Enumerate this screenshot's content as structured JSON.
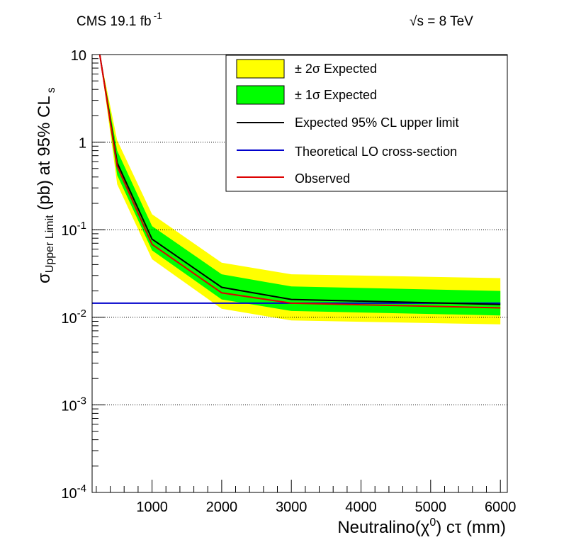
{
  "header": {
    "left_main": "CMS 19.1 fb",
    "left_sup": "-1",
    "right_sqrt": "√",
    "right_text": "s = 8 TeV"
  },
  "legend": {
    "two_sigma": "± 2σ Expected",
    "one_sigma": "± 1σ Expected",
    "expected": "Expected 95% CL upper limit",
    "theory": "Theoretical LO cross-section",
    "observed": "Observed"
  },
  "colors": {
    "two_sigma": "#ffff00",
    "one_sigma": "#00ff00",
    "expected": "#000000",
    "theory": "#0000cc",
    "observed": "#dd0000",
    "grid": "#000000"
  },
  "chart_data": {
    "type": "line",
    "yscale": "log",
    "xlim": [
      140,
      6100
    ],
    "ylim": [
      0.0001,
      10
    ],
    "xticks": [
      {
        "value": 1000,
        "label": "1000"
      },
      {
        "value": 2000,
        "label": "2000"
      },
      {
        "value": 3000,
        "label": "3000"
      },
      {
        "value": 4000,
        "label": "4000"
      },
      {
        "value": 5000,
        "label": "5000"
      },
      {
        "value": 6000,
        "label": "6000"
      }
    ],
    "yticks": [
      {
        "value": 10,
        "base": "10",
        "exp": ""
      },
      {
        "value": 1,
        "base": "1",
        "exp": ""
      },
      {
        "value": 0.1,
        "base": "10",
        "exp": "-1"
      },
      {
        "value": 0.01,
        "base": "10",
        "exp": "-2"
      },
      {
        "value": 0.001,
        "base": "10",
        "exp": "-3"
      },
      {
        "value": 0.0001,
        "base": "10",
        "exp": "-4"
      }
    ],
    "grid": "horizontal dotted at decades",
    "legend_position": "top-right",
    "xlabel": {
      "pre": "Neutralino(",
      "chi": "χ",
      "sup": "0",
      "post": ") cτ (mm)"
    },
    "ylabel": {
      "sigma": "σ",
      "sub": "Upper Limit",
      "mid": " (pb) at 95% CL",
      "sub2": "s"
    },
    "x": [
      250,
      500,
      1000,
      2000,
      3000,
      6000
    ],
    "series": [
      {
        "name": "Expected 95% CL upper limit",
        "values": [
          10,
          0.58,
          0.078,
          0.022,
          0.016,
          0.014
        ]
      },
      {
        "name": "Observed",
        "values": [
          10,
          0.53,
          0.068,
          0.019,
          0.0145,
          0.0128
        ]
      },
      {
        "name": "Theoretical LO cross-section",
        "values": [
          0.0145,
          0.0145,
          0.0145,
          0.0145,
          0.0145,
          0.0145
        ]
      }
    ],
    "bands": [
      {
        "name": "± 2σ Expected",
        "lower": [
          10,
          0.33,
          0.046,
          0.0125,
          0.0092,
          0.0083
        ],
        "upper": [
          10,
          1.05,
          0.15,
          0.042,
          0.031,
          0.028
        ]
      },
      {
        "name": "± 1σ Expected",
        "lower": [
          10,
          0.42,
          0.058,
          0.016,
          0.0118,
          0.0105
        ],
        "upper": [
          10,
          0.8,
          0.11,
          0.031,
          0.0225,
          0.02
        ]
      }
    ]
  }
}
